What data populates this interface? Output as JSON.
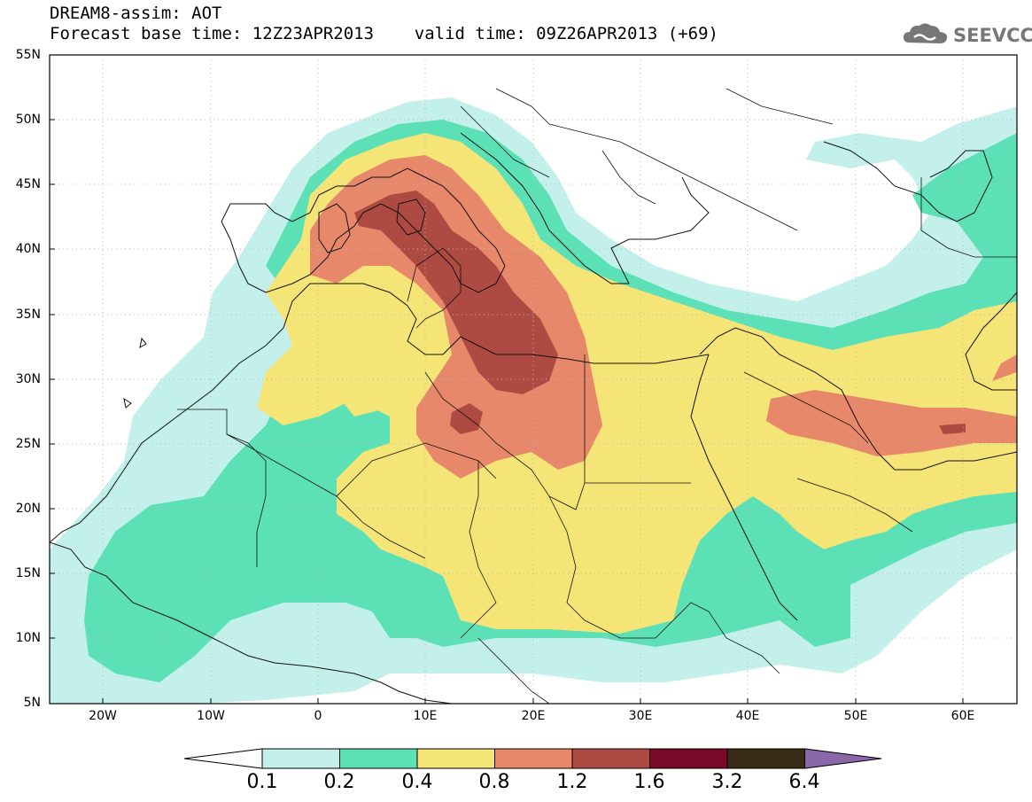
{
  "title": {
    "line1": "DREAM8-assim: AOT",
    "line2": "Forecast base time: 12Z23APR2013    valid time: 09Z26APR2013 (+69)"
  },
  "logo": {
    "text": "SEEVCCC",
    "icon": "cloud-icon"
  },
  "map": {
    "lon_range": [
      -25,
      65
    ],
    "lat_range": [
      5,
      55
    ],
    "grid": "dotted",
    "y_ticks": [
      "55N",
      "50N",
      "45N",
      "40N",
      "35N",
      "30N",
      "25N",
      "20N",
      "15N",
      "10N",
      "5N"
    ],
    "x_ticks": [
      "20W",
      "10W",
      "0",
      "10E",
      "20E",
      "30E",
      "40E",
      "50E",
      "60E"
    ]
  },
  "colorbar": {
    "labels": [
      "0.1",
      "0.2",
      "0.4",
      "0.8",
      "1.2",
      "1.6",
      "3.2",
      "6.4"
    ],
    "colors": [
      "#c3f0ea",
      "#5ce0b6",
      "#f5e476",
      "#e8886a",
      "#ad4a42",
      "#7a0a2a",
      "#3a2a18",
      "#8a68a8"
    ]
  }
}
